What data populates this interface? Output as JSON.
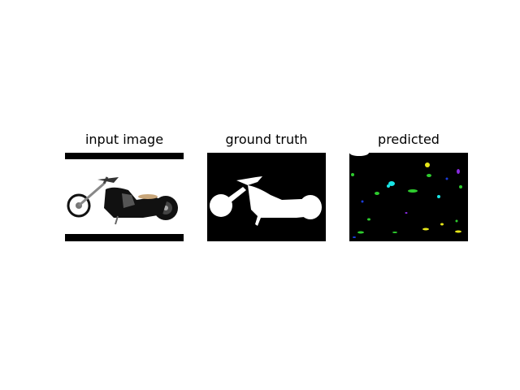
{
  "figure": {
    "panels": [
      {
        "title": "input image"
      },
      {
        "title": "ground truth"
      },
      {
        "title": "predicted"
      }
    ]
  },
  "colors": {
    "background": "#ffffff",
    "mask_background": "#000000",
    "mask_foreground": "#ffffff",
    "pred_cyan": "#19e6e6",
    "pred_green": "#2ecc2e",
    "pred_yellow": "#e6e619",
    "pred_blue": "#1a3cd9",
    "pred_purple": "#8a2be2"
  },
  "icons": [
    "motorcycle-photo",
    "motorcycle-mask",
    "prediction-blotches"
  ]
}
